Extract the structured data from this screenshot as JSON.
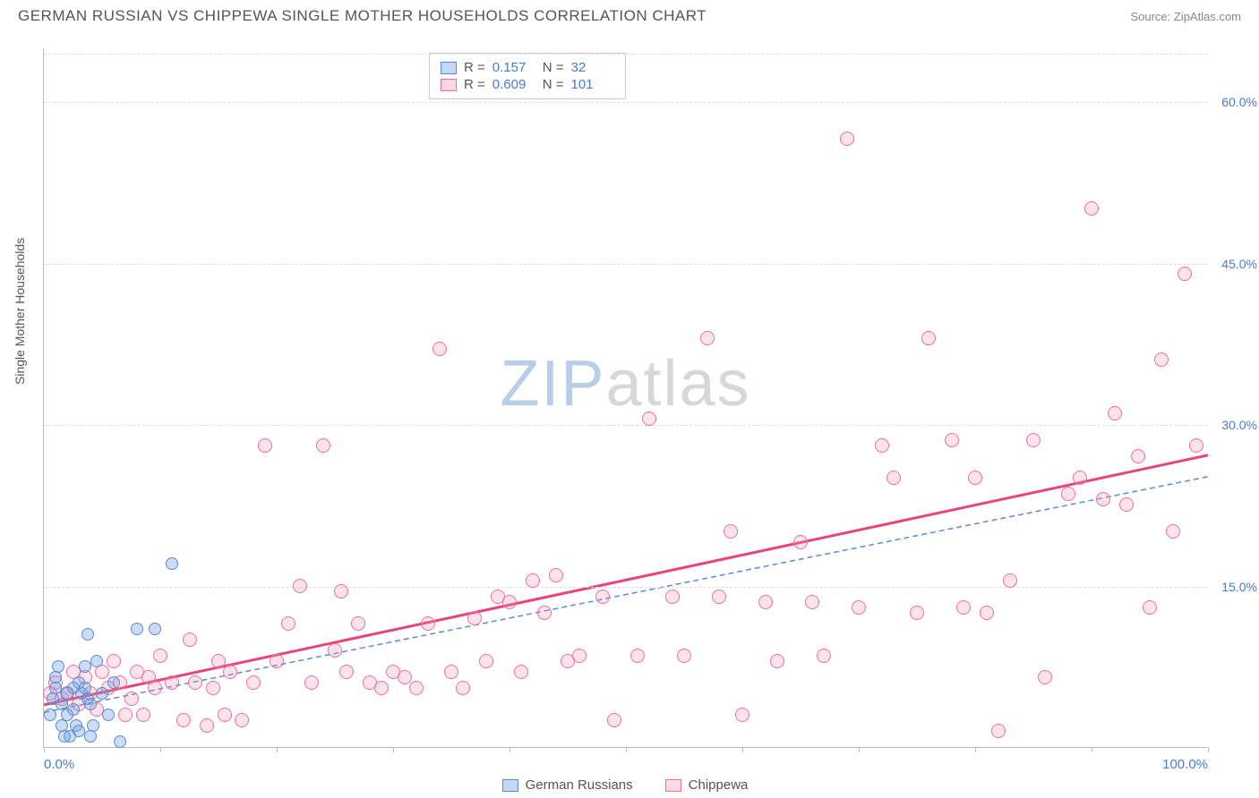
{
  "title": "GERMAN RUSSIAN VS CHIPPEWA SINGLE MOTHER HOUSEHOLDS CORRELATION CHART",
  "source": "Source: ZipAtlas.com",
  "y_label": "Single Mother Households",
  "watermark": {
    "part1": "ZIP",
    "part2": "atlas"
  },
  "chart": {
    "type": "scatter",
    "xlim": [
      0,
      100
    ],
    "ylim": [
      0,
      65
    ],
    "x_ticks": [
      0,
      10,
      20,
      30,
      40,
      50,
      60,
      70,
      80,
      90,
      100
    ],
    "x_tick_labels": {
      "0": "0.0%",
      "100": "100.0%"
    },
    "y_ticks": [
      15,
      30,
      45,
      60
    ],
    "y_tick_labels": [
      "15.0%",
      "30.0%",
      "45.0%",
      "60.0%"
    ],
    "grid_color": "#dddddd",
    "background_color": "#ffffff",
    "series": {
      "a": {
        "name": "German Russians",
        "fill_color": "#6c9ce3",
        "fill_opacity": 0.35,
        "stroke_color": "#5b8bd6",
        "marker_size": 14,
        "r_value": "0.157",
        "n_value": "32",
        "trend": {
          "x1": 0,
          "y1": 3.3,
          "x2": 100,
          "y2": 25.2,
          "dash": "6 4",
          "color": "#5b8bd6",
          "width": 1.5
        },
        "points": [
          [
            0.5,
            3.0
          ],
          [
            0.8,
            4.5
          ],
          [
            1.0,
            5.5
          ],
          [
            1.0,
            6.5
          ],
          [
            1.2,
            7.5
          ],
          [
            1.5,
            2.0
          ],
          [
            1.5,
            4.0
          ],
          [
            1.8,
            1.0
          ],
          [
            2.0,
            5.0
          ],
          [
            2.0,
            3.0
          ],
          [
            2.2,
            1.0
          ],
          [
            2.5,
            5.5
          ],
          [
            2.5,
            3.5
          ],
          [
            2.8,
            2.0
          ],
          [
            3.0,
            1.5
          ],
          [
            3.0,
            6.0
          ],
          [
            3.2,
            5.0
          ],
          [
            3.5,
            7.5
          ],
          [
            3.5,
            5.5
          ],
          [
            3.8,
            10.5
          ],
          [
            4.0,
            1.0
          ],
          [
            4.0,
            4.0
          ],
          [
            4.5,
            8.0
          ],
          [
            5.0,
            5.0
          ],
          [
            5.5,
            3.0
          ],
          [
            6.0,
            6.0
          ],
          [
            6.5,
            0.5
          ],
          [
            8.0,
            11.0
          ],
          [
            9.5,
            11.0
          ],
          [
            11.0,
            17.0
          ],
          [
            4.2,
            2.0
          ],
          [
            3.8,
            4.5
          ]
        ]
      },
      "b": {
        "name": "Chippewa",
        "fill_color": "#f48fb1",
        "fill_opacity": 0.25,
        "stroke_color": "#ec6f9b",
        "marker_size": 16,
        "r_value": "0.609",
        "n_value": "101",
        "trend": {
          "x1": 0,
          "y1": 4.0,
          "x2": 100,
          "y2": 27.2,
          "dash": "none",
          "color": "#e8447a",
          "width": 3
        },
        "points": [
          [
            0.5,
            5.0
          ],
          [
            1.0,
            6.0
          ],
          [
            1.5,
            4.5
          ],
          [
            2.0,
            5.0
          ],
          [
            2.5,
            7.0
          ],
          [
            3.0,
            4.0
          ],
          [
            3.5,
            6.5
          ],
          [
            4.0,
            5.0
          ],
          [
            4.5,
            3.5
          ],
          [
            5.0,
            7.0
          ],
          [
            5.5,
            5.5
          ],
          [
            6.0,
            8.0
          ],
          [
            6.5,
            6.0
          ],
          [
            7.0,
            3.0
          ],
          [
            7.5,
            4.5
          ],
          [
            8.0,
            7.0
          ],
          [
            8.5,
            3.0
          ],
          [
            9.0,
            6.5
          ],
          [
            9.5,
            5.5
          ],
          [
            10.0,
            8.5
          ],
          [
            11.0,
            6.0
          ],
          [
            12.0,
            2.5
          ],
          [
            12.5,
            10.0
          ],
          [
            13.0,
            6.0
          ],
          [
            14.0,
            2.0
          ],
          [
            14.5,
            5.5
          ],
          [
            15.0,
            8.0
          ],
          [
            15.5,
            3.0
          ],
          [
            16.0,
            7.0
          ],
          [
            17.0,
            2.5
          ],
          [
            18.0,
            6.0
          ],
          [
            19.0,
            28.0
          ],
          [
            20.0,
            8.0
          ],
          [
            21.0,
            11.5
          ],
          [
            22.0,
            15.0
          ],
          [
            23.0,
            6.0
          ],
          [
            24.0,
            28.0
          ],
          [
            25.0,
            9.0
          ],
          [
            25.5,
            14.5
          ],
          [
            26.0,
            7.0
          ],
          [
            27.0,
            11.5
          ],
          [
            28.0,
            6.0
          ],
          [
            29.0,
            5.5
          ],
          [
            30.0,
            7.0
          ],
          [
            31.0,
            6.5
          ],
          [
            32.0,
            5.5
          ],
          [
            33.0,
            11.5
          ],
          [
            34.0,
            37.0
          ],
          [
            35.0,
            7.0
          ],
          [
            36.0,
            5.5
          ],
          [
            37.0,
            12.0
          ],
          [
            38.0,
            8.0
          ],
          [
            39.0,
            14.0
          ],
          [
            40.0,
            13.5
          ],
          [
            41.0,
            7.0
          ],
          [
            42.0,
            15.5
          ],
          [
            43.0,
            12.5
          ],
          [
            44.0,
            16.0
          ],
          [
            45.0,
            8.0
          ],
          [
            46.0,
            8.5
          ],
          [
            48.0,
            14.0
          ],
          [
            49.0,
            2.5
          ],
          [
            51.0,
            8.5
          ],
          [
            52.0,
            30.5
          ],
          [
            54.0,
            14.0
          ],
          [
            55.0,
            8.5
          ],
          [
            57.0,
            38.0
          ],
          [
            58.0,
            14.0
          ],
          [
            59.0,
            20.0
          ],
          [
            60.0,
            3.0
          ],
          [
            62.0,
            13.5
          ],
          [
            63.0,
            8.0
          ],
          [
            65.0,
            19.0
          ],
          [
            66.0,
            13.5
          ],
          [
            67.0,
            8.5
          ],
          [
            69.0,
            56.5
          ],
          [
            70.0,
            13.0
          ],
          [
            72.0,
            28.0
          ],
          [
            73.0,
            25.0
          ],
          [
            75.0,
            12.5
          ],
          [
            76.0,
            38.0
          ],
          [
            78.0,
            28.5
          ],
          [
            79.0,
            13.0
          ],
          [
            80.0,
            25.0
          ],
          [
            81.0,
            12.5
          ],
          [
            82.0,
            1.5
          ],
          [
            83.0,
            15.5
          ],
          [
            85.0,
            28.5
          ],
          [
            86.0,
            6.5
          ],
          [
            88.0,
            23.5
          ],
          [
            89.0,
            25.0
          ],
          [
            90.0,
            50.0
          ],
          [
            91.0,
            23.0
          ],
          [
            92.0,
            31.0
          ],
          [
            93.0,
            22.5
          ],
          [
            94.0,
            27.0
          ],
          [
            95.0,
            13.0
          ],
          [
            96.0,
            36.0
          ],
          [
            97.0,
            20.0
          ],
          [
            98.0,
            44.0
          ],
          [
            99.0,
            28.0
          ]
        ]
      }
    }
  },
  "legend_top": {
    "r_label": "R =",
    "n_label": "N ="
  },
  "legend_bottom": {
    "a": "German Russians",
    "b": "Chippewa"
  }
}
